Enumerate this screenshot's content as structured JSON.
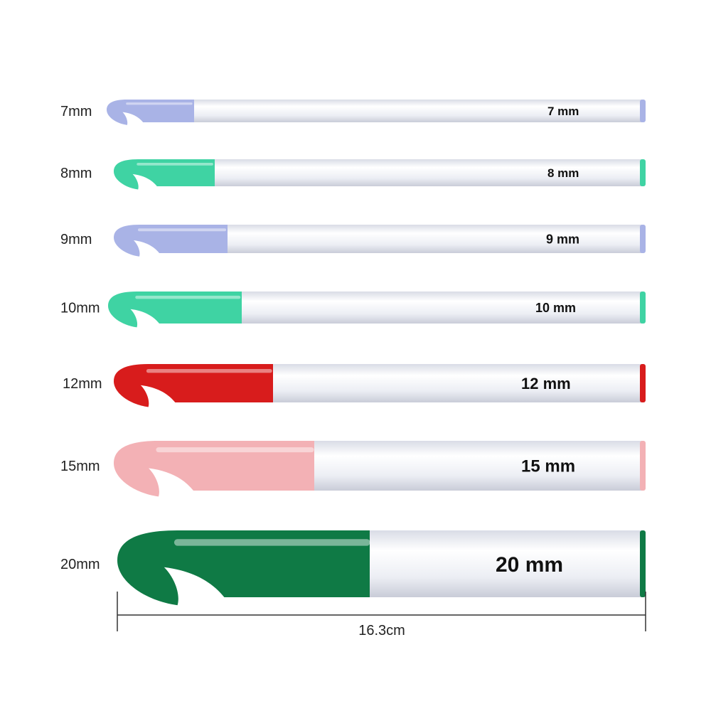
{
  "hooks": [
    {
      "size_label": "7mm",
      "shaft_text": "7 mm",
      "color": "#a9b3e6"
    },
    {
      "size_label": "8mm",
      "shaft_text": "8 mm",
      "color": "#3fd3a3"
    },
    {
      "size_label": "9mm",
      "shaft_text": "9 mm",
      "color": "#a9b3e6"
    },
    {
      "size_label": "10mm",
      "shaft_text": "10 mm",
      "color": "#3fd3a3"
    },
    {
      "size_label": "12mm",
      "shaft_text": "12 mm",
      "color": "#d81c1c"
    },
    {
      "size_label": "15mm",
      "shaft_text": "15 mm",
      "color": "#f3b1b5"
    },
    {
      "size_label": "20mm",
      "shaft_text": "20 mm",
      "color": "#0f7a45"
    }
  ],
  "dimension": {
    "label": "16.3cm"
  },
  "colors": {
    "shaft": "#eceef4",
    "shaft_highlight": "#ffffff",
    "dimension_line": "#333333"
  }
}
